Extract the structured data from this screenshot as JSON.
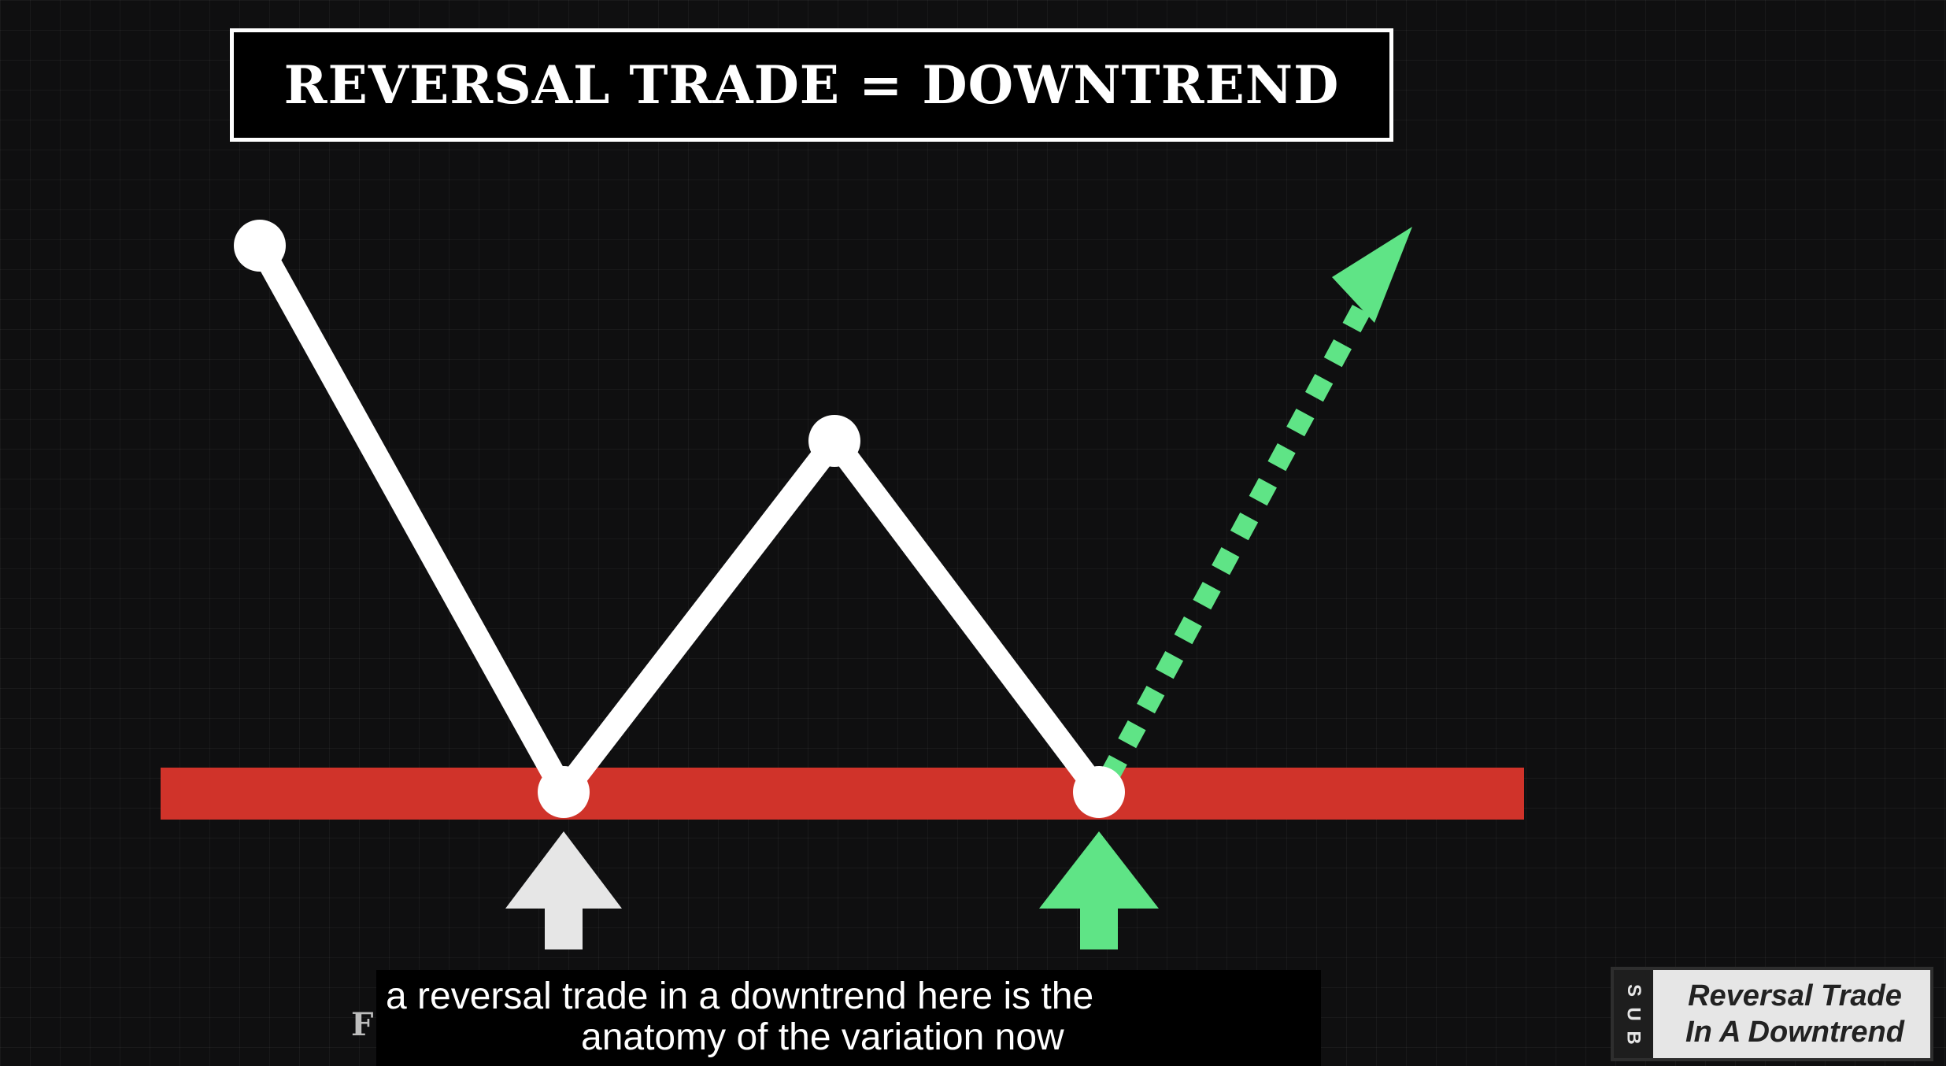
{
  "title": "REVERSAL TRADE = DOWNTREND",
  "colors": {
    "background": "#0f0f10",
    "price_line": "#ffffff",
    "support_zone": "#d0332a",
    "breakout_arrow": "#5fe486",
    "first_touch_arrow": "#e6e6e6"
  },
  "caption": {
    "line1": "a reversal trade in a downtrend here is the",
    "line2": "anatomy of the variation now"
  },
  "corner_letter": "F",
  "badge": {
    "sub_letters": [
      "S",
      "U",
      "B"
    ],
    "line1": "Reversal Trade",
    "line2": "In A Downtrend"
  }
}
